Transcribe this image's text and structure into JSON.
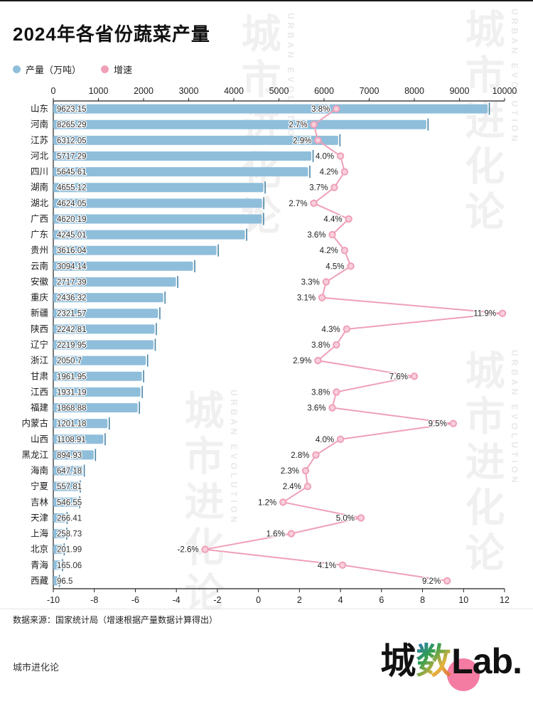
{
  "title": "2024年各省份蔬菜产量",
  "legend": {
    "production": "产量（万吨）",
    "growth": "增速"
  },
  "watermark": {
    "cn": "城市进化论",
    "en": "URBAN EVOLUTION"
  },
  "source_note": "数据来源：国家统计局（增速根据产量数据计算得出）",
  "brand_footer": "城市进化论",
  "logo": {
    "cheng": "城",
    "shu": "数",
    "lab": "Lab."
  },
  "colors": {
    "bar": "#8fbedb",
    "bar_cap": "#4a84a6",
    "line": "#efa0b8",
    "dot_fill": "#f9cfdb",
    "axis": "#222222",
    "label": "#2e2e2e"
  },
  "chart_data": {
    "type": "bar",
    "orientation": "horizontal",
    "title": "2024年各省份蔬菜产量",
    "categories": [
      "山东",
      "河南",
      "江苏",
      "河北",
      "四川",
      "湖南",
      "湖北",
      "广西",
      "广东",
      "贵州",
      "云南",
      "安徽",
      "重庆",
      "新疆",
      "陕西",
      "辽宁",
      "浙江",
      "甘肃",
      "江西",
      "福建",
      "内蒙古",
      "山西",
      "黑龙江",
      "海南",
      "宁夏",
      "吉林",
      "天津",
      "上海",
      "北京",
      "青海",
      "西藏"
    ],
    "series": [
      {
        "name": "产量（万吨）",
        "type": "bar",
        "values": [
          9623.15,
          8265.29,
          6312.05,
          5717.29,
          5645.61,
          4655.12,
          4624.05,
          4620.19,
          4245.01,
          3616.04,
          3094.14,
          2717.39,
          2436.32,
          2321.57,
          2242.81,
          2219.95,
          2050.7,
          1961.95,
          1931.19,
          1868.88,
          1201.18,
          1108.91,
          894.93,
          647.18,
          557.81,
          546.55,
          266.41,
          258.73,
          201.99,
          165.06,
          96.5
        ]
      },
      {
        "name": "增速",
        "type": "line",
        "unit": "%",
        "values": [
          3.8,
          2.7,
          2.9,
          4.0,
          4.2,
          3.7,
          2.7,
          4.4,
          3.6,
          4.2,
          4.5,
          3.3,
          3.1,
          11.9,
          4.3,
          3.8,
          2.9,
          7.6,
          3.8,
          3.6,
          9.5,
          4.0,
          2.8,
          2.3,
          2.4,
          1.2,
          5.0,
          1.6,
          -2.6,
          4.1,
          9.2
        ]
      }
    ],
    "top_axis": {
      "min": 0,
      "max": 10000,
      "step": 1000
    },
    "bottom_axis": {
      "min": -10,
      "max": 12,
      "step": 2
    },
    "grid": false,
    "legend_position": "top-left"
  }
}
